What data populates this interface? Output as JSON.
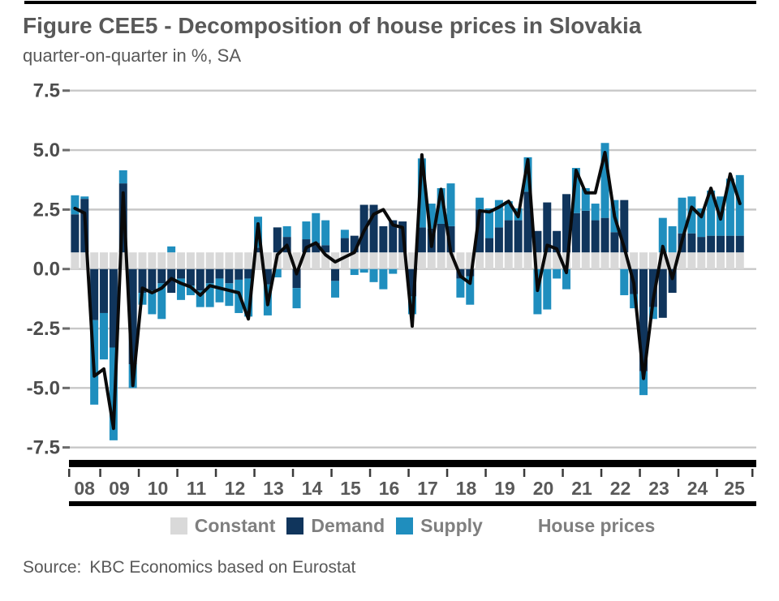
{
  "header": {
    "title": "Figure CEE5 - Decomposition of house prices in Slovakia",
    "subtitle": "quarter-on-quarter in %, SA"
  },
  "source": {
    "label": "Source:",
    "text": "KBC Economics based on Eurostat"
  },
  "legend": [
    {
      "label": "Constant",
      "color": "#d9d9d9",
      "marker": "square"
    },
    {
      "label": "Demand",
      "color": "#10355c",
      "marker": "square"
    },
    {
      "label": "Supply",
      "color": "#1f8ebe",
      "marker": "square"
    },
    {
      "label": "House prices",
      "color": "#0a0a0a",
      "marker": "none"
    }
  ],
  "colors": {
    "constant": "#d9d9d9",
    "demand": "#10355c",
    "supply": "#1f8ebe",
    "line": "#0a0a0a",
    "grid": "#c8c8c8",
    "axis": "#000000",
    "text": "#595959",
    "tick_text": "#4d4d4d"
  },
  "chart_data": {
    "type": "bar",
    "stacked": true,
    "grid": true,
    "legend_position": "bottom",
    "title": "Figure CEE5 - Decomposition of house prices in Slovakia",
    "xlabel": "",
    "ylabel": "quarter-on-quarter in %, SA",
    "ylim": [
      -7.5,
      7.5
    ],
    "yticks": [
      7.5,
      5.0,
      2.5,
      0.0,
      -2.5,
      -5.0,
      -7.5
    ],
    "ytick_labels": [
      "7.5",
      "5.0",
      "2.5",
      "0.0",
      "-2.5",
      "-5.0",
      "-7.5"
    ],
    "x_year_labels": [
      "08",
      "09",
      "10",
      "11",
      "12",
      "13",
      "14",
      "15",
      "16",
      "17",
      "18",
      "19",
      "20",
      "21",
      "22",
      "23",
      "24",
      "25"
    ],
    "categories": [
      "2008Q2",
      "2008Q3",
      "2008Q4",
      "2009Q1",
      "2009Q2",
      "2009Q3",
      "2009Q4",
      "2010Q1",
      "2010Q2",
      "2010Q3",
      "2010Q4",
      "2011Q1",
      "2011Q2",
      "2011Q3",
      "2011Q4",
      "2012Q1",
      "2012Q2",
      "2012Q3",
      "2012Q4",
      "2013Q1",
      "2013Q2",
      "2013Q3",
      "2013Q4",
      "2014Q1",
      "2014Q2",
      "2014Q3",
      "2014Q4",
      "2015Q1",
      "2015Q2",
      "2015Q3",
      "2015Q4",
      "2016Q1",
      "2016Q2",
      "2016Q3",
      "2016Q4",
      "2017Q1",
      "2017Q2",
      "2017Q3",
      "2017Q4",
      "2018Q1",
      "2018Q2",
      "2018Q3",
      "2018Q4",
      "2019Q1",
      "2019Q2",
      "2019Q3",
      "2019Q4",
      "2020Q1",
      "2020Q2",
      "2020Q3",
      "2020Q4",
      "2021Q1",
      "2021Q2",
      "2021Q3",
      "2021Q4",
      "2022Q1",
      "2022Q2",
      "2022Q3",
      "2022Q4",
      "2023Q1",
      "2023Q2",
      "2023Q3",
      "2023Q4",
      "2024Q1",
      "2024Q2",
      "2024Q3",
      "2024Q4",
      "2025Q1",
      "2025Q2",
      "2025Q3"
    ],
    "series": [
      {
        "name": "Constant",
        "color": "#d9d9d9",
        "values": [
          0.7,
          0.7,
          0.7,
          0.7,
          0.7,
          0.7,
          0.7,
          0.7,
          0.7,
          0.7,
          0.7,
          0.7,
          0.7,
          0.7,
          0.7,
          0.7,
          0.7,
          0.7,
          0.7,
          0.7,
          0.7,
          0.7,
          0.7,
          0.7,
          0.7,
          0.7,
          0.7,
          0.7,
          0.7,
          0.7,
          0.7,
          0.7,
          0.7,
          0.7,
          0.7,
          0.7,
          0.7,
          0.7,
          0.7,
          0.7,
          0.7,
          0.7,
          0.7,
          0.7,
          0.7,
          0.7,
          0.7,
          0.7,
          0.7,
          0.7,
          0.7,
          0.7,
          0.7,
          0.7,
          0.7,
          0.7,
          0.7,
          0.7,
          0.7,
          0.7,
          0.7,
          0.7,
          0.7,
          0.7,
          0.7,
          0.7,
          0.7,
          0.7,
          0.7,
          0.7
        ]
      },
      {
        "name": "Demand",
        "color": "#10355c",
        "values": [
          1.6,
          2.25,
          -2.15,
          -1.85,
          -3.3,
          2.9,
          -4.0,
          -1.0,
          -0.9,
          -0.6,
          -1.0,
          -0.4,
          -0.7,
          -0.9,
          -0.6,
          -0.4,
          -0.6,
          -0.45,
          -0.4,
          0.2,
          -0.65,
          1.05,
          0.65,
          -0.8,
          0.55,
          0.4,
          0.3,
          -0.5,
          0.6,
          0.7,
          2.0,
          2.0,
          1.1,
          1.35,
          1.3,
          -1.15,
          1.05,
          1.0,
          1.2,
          1.1,
          -0.4,
          -0.3,
          1.8,
          0.6,
          1.05,
          1.35,
          1.35,
          2.55,
          0.9,
          2.1,
          0.9,
          2.45,
          1.65,
          1.75,
          1.35,
          1.45,
          0.85,
          2.2,
          -1.05,
          -4.3,
          -1.6,
          -2.05,
          -1.0,
          0.8,
          0.8,
          0.65,
          0.7,
          0.7,
          0.7,
          0.7
        ]
      },
      {
        "name": "Supply",
        "color": "#1f8ebe",
        "values": [
          0.8,
          0.1,
          -3.55,
          -1.95,
          -3.9,
          0.55,
          -1.0,
          -0.5,
          -1.0,
          -1.5,
          0.25,
          -0.9,
          -0.4,
          -0.7,
          -1.0,
          -1.0,
          -0.95,
          -1.4,
          -1.6,
          1.3,
          -1.3,
          -0.35,
          0.45,
          -0.85,
          0.75,
          1.25,
          1.05,
          -0.7,
          0.35,
          -0.25,
          -0.15,
          -0.55,
          -0.85,
          -0.2,
          0.0,
          -0.75,
          2.9,
          1.05,
          1.5,
          1.8,
          -0.8,
          -1.2,
          0.5,
          1.25,
          1.15,
          0.8,
          0.5,
          1.45,
          -1.9,
          -1.7,
          -0.4,
          -0.85,
          1.9,
          0.95,
          0.7,
          3.15,
          1.35,
          -1.1,
          -0.6,
          -1.0,
          -0.5,
          1.45,
          1.1,
          1.5,
          1.55,
          1.2,
          1.9,
          1.65,
          2.4,
          2.55
        ]
      }
    ],
    "line_series": {
      "name": "House prices",
      "color": "#0a0a0a",
      "values": [
        2.55,
        2.35,
        -4.5,
        -4.2,
        -6.7,
        3.2,
        -4.9,
        -0.8,
        -1.0,
        -0.8,
        -0.4,
        -0.6,
        -0.75,
        -1.1,
        -0.7,
        -0.8,
        -0.9,
        -1.0,
        -2.1,
        1.9,
        -1.5,
        0.6,
        1.0,
        -0.2,
        0.9,
        1.1,
        0.6,
        0.3,
        0.5,
        0.7,
        1.6,
        2.3,
        2.5,
        1.85,
        1.75,
        -2.4,
        4.8,
        0.95,
        3.35,
        0.7,
        -0.3,
        -0.6,
        2.45,
        2.4,
        2.6,
        2.85,
        2.2,
        4.6,
        -0.9,
        1.0,
        0.85,
        -0.15,
        4.15,
        3.2,
        3.2,
        4.9,
        2.2,
        0.9,
        -0.6,
        -4.6,
        -1.3,
        0.95,
        -0.4,
        1.2,
        2.6,
        2.2,
        3.4,
        2.1,
        4.0,
        2.75
      ]
    }
  }
}
